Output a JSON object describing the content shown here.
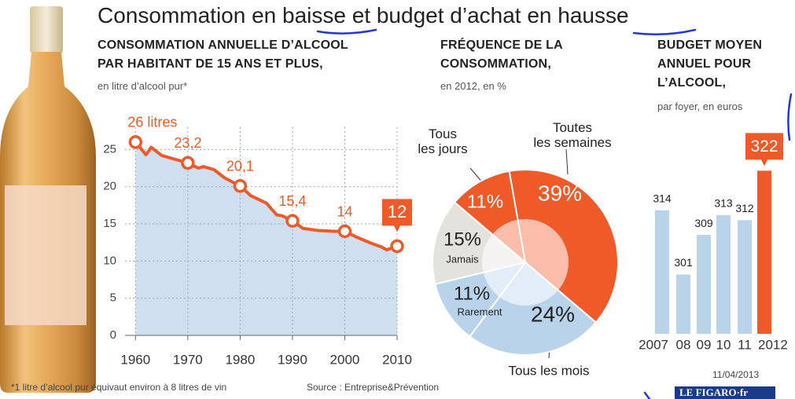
{
  "title": "Consommation en baisse et budget d’achat en hausse",
  "chart_data": [
    {
      "type": "line",
      "title": "CONSOMMATION ANNUELLE D’ALCOOL\nPAR HABITANT DE 15 ANS ET PLUS,",
      "subtitle": "en litre d’alcool pur*",
      "x": [
        1960,
        1962,
        1963,
        1965,
        1967,
        1970,
        1972,
        1973,
        1975,
        1977,
        1980,
        1982,
        1985,
        1987,
        1988,
        1990,
        1992,
        1995,
        1998,
        2000,
        2002,
        2005,
        2007,
        2008,
        2010
      ],
      "values": [
        26,
        24.3,
        25.3,
        24.2,
        23.8,
        23.2,
        22.5,
        22.7,
        22.3,
        21.2,
        20.1,
        18.8,
        17.8,
        16.2,
        16.1,
        15.4,
        14.4,
        14.1,
        14.0,
        14,
        13.3,
        12.4,
        11.9,
        11.5,
        12
      ],
      "value_labels": [
        "26 litres",
        null,
        null,
        null,
        null,
        "23,2",
        null,
        null,
        null,
        null,
        "20,1",
        null,
        null,
        null,
        null,
        "15,4",
        null,
        null,
        null,
        "14",
        null,
        null,
        null,
        null,
        "12"
      ],
      "color": "#f05a28",
      "area_color": "#cfdff0",
      "xlim": [
        1958,
        2010
      ],
      "xticks": [
        1960,
        1970,
        1980,
        1990,
        2000,
        2010
      ],
      "ylim": [
        0,
        28
      ],
      "yticks": [
        0,
        5,
        10,
        15,
        20,
        25
      ],
      "grid": true
    },
    {
      "type": "pie",
      "title": "FRÉQUENCE DE LA\nCONSOMMATION,",
      "subtitle": "en 2012, en %",
      "categories": [
        "Toutes\nles semaines",
        "Tous les mois",
        "Rarement",
        "Jamais",
        "Tous\nles jours"
      ],
      "values": [
        39,
        24,
        11,
        15,
        11
      ],
      "value_labels": [
        "39%",
        "24%",
        "11%",
        "15%",
        "11%"
      ],
      "colors": [
        "#f05a28",
        "#b9d3ea",
        "#b9d3ea",
        "#e4e2dc",
        "#f05a28"
      ]
    },
    {
      "type": "bar",
      "title": "BUDGET MOYEN\nANNUEL POUR\nL’ALCOOL,",
      "subtitle": "par foyer, en euros",
      "categories": [
        "2007",
        "08",
        "09",
        "10",
        "11",
        "2012"
      ],
      "values": [
        314,
        301,
        309,
        313,
        312,
        322
      ],
      "colors": [
        "#b9d3ea",
        "#b9d3ea",
        "#b9d3ea",
        "#b9d3ea",
        "#b9d3ea",
        "#f05a28"
      ],
      "ylim": [
        289,
        330
      ]
    }
  ],
  "footnote": "*1 litre d’alcool pur équivaut environ à 8 litres de vin",
  "source": "Source : Entreprise&Prévention",
  "date": "11/04/2013",
  "logo": "LE FIGARO·fr"
}
